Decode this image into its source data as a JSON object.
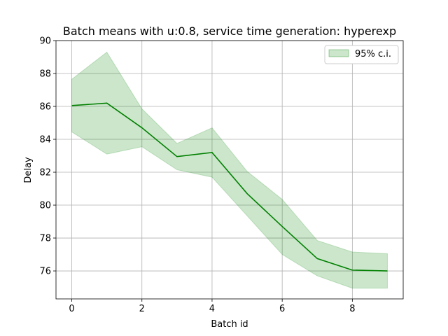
{
  "chart_data": {
    "type": "line",
    "title": "Batch means with u:0.8, service time generation: hyperexp",
    "xlabel": "Batch id",
    "ylabel": "Delay",
    "xlim": [
      -0.45,
      9.45
    ],
    "ylim": [
      74.3,
      90.0
    ],
    "xticks": [
      0,
      2,
      4,
      6,
      8
    ],
    "yticks": [
      76,
      78,
      80,
      82,
      84,
      86,
      88,
      90
    ],
    "grid": true,
    "legend_position": "top-right",
    "series": [
      {
        "color": "#008000",
        "x": [
          0,
          1,
          2,
          3,
          4,
          5,
          6,
          7,
          8,
          9
        ],
        "y": [
          86.05,
          86.2,
          84.7,
          82.95,
          83.2,
          80.7,
          78.7,
          76.75,
          76.05,
          76.0
        ]
      }
    ],
    "band": {
      "name": "95% c.i.",
      "color": "#008000",
      "opacity": 0.2,
      "x": [
        0,
        1,
        2,
        3,
        4,
        5,
        6,
        7,
        8,
        9
      ],
      "lower": [
        84.45,
        83.1,
        83.55,
        82.15,
        81.7,
        79.35,
        77.0,
        75.7,
        74.95,
        74.95
      ],
      "upper": [
        87.65,
        89.3,
        85.85,
        83.75,
        84.7,
        82.05,
        80.35,
        77.85,
        77.15,
        77.05
      ]
    }
  }
}
